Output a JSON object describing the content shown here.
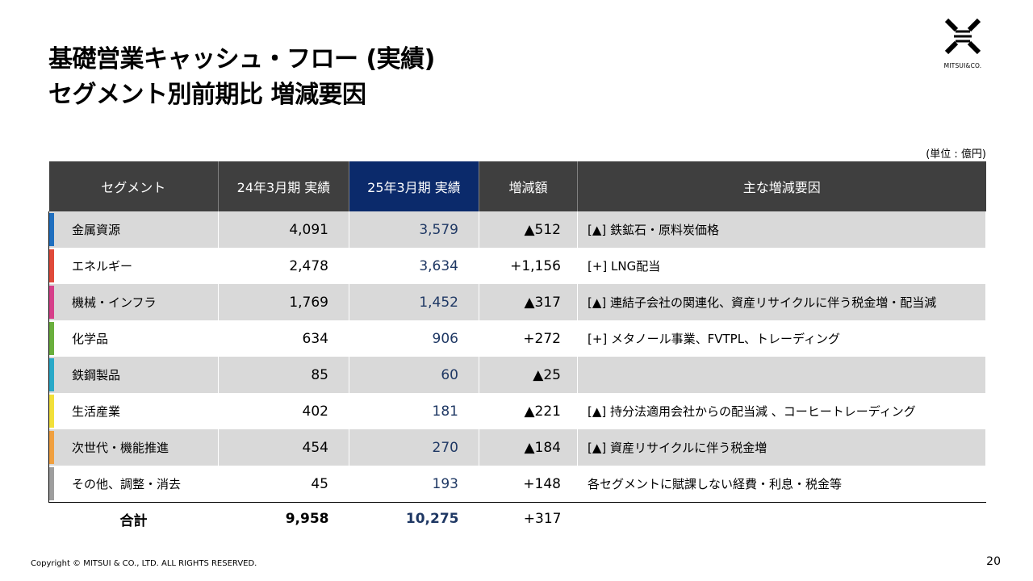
{
  "title": {
    "line1": "基礎営業キャッシュ・フロー (実績)",
    "line2": "セグメント別前期比 増減要因"
  },
  "logo": {
    "text": "MITSUI&CO."
  },
  "unit": "(単位 : 億円)",
  "table": {
    "headers": [
      "セグメント",
      "24年3月期 実績",
      "25年3月期 実績",
      "増減額",
      "主な増減要因"
    ],
    "rows": [
      {
        "segment": "金属資源",
        "fy24": "4,091",
        "fy25": "3,579",
        "diff": "▲512",
        "reason": "[▲] 鉄鉱石・原料炭価格",
        "color": "#1f6fbf"
      },
      {
        "segment": "エネルギー",
        "fy24": "2,478",
        "fy25": "3,634",
        "diff": "+1,156",
        "reason": "[+] LNG配当",
        "color": "#e04a3a"
      },
      {
        "segment": "機械・インフラ",
        "fy24": "1,769",
        "fy25": "1,452",
        "diff": "▲317",
        "reason": "[▲] 連結子会社の関連化、資産リサイクルに伴う税金増・配当減",
        "color": "#d6408a"
      },
      {
        "segment": "化学品",
        "fy24": "634",
        "fy25": "906",
        "diff": "+272",
        "reason": "[+] メタノール事業、FVTPL、トレーディング",
        "color": "#6aaf3d"
      },
      {
        "segment": "鉄鋼製品",
        "fy24": "85",
        "fy25": "60",
        "diff": "▲25",
        "reason": "",
        "color": "#2aa9c8"
      },
      {
        "segment": "生活産業",
        "fy24": "402",
        "fy25": "181",
        "diff": "▲221",
        "reason": "[▲] 持分法適用会社からの配当減 、コーヒートレーディング",
        "color": "#f2e03a"
      },
      {
        "segment": "次世代・機能推進",
        "fy24": "454",
        "fy25": "270",
        "diff": "▲184",
        "reason": "[▲] 資産リサイクルに伴う税金増",
        "color": "#f0a040"
      },
      {
        "segment": "その他、調整・消去",
        "fy24": "45",
        "fy25": "193",
        "diff": "+148",
        "reason": "各セグメントに賦課しない経費・利息・税金等",
        "color": "#9e9e9e"
      }
    ],
    "total": {
      "label": "合計",
      "fy24": "9,958",
      "fy25": "10,275",
      "diff": "+317"
    }
  },
  "footer": {
    "copyright": "Copyright © MITSUI & CO., LTD. ALL RIGHTS RESERVED.",
    "page": "20"
  }
}
